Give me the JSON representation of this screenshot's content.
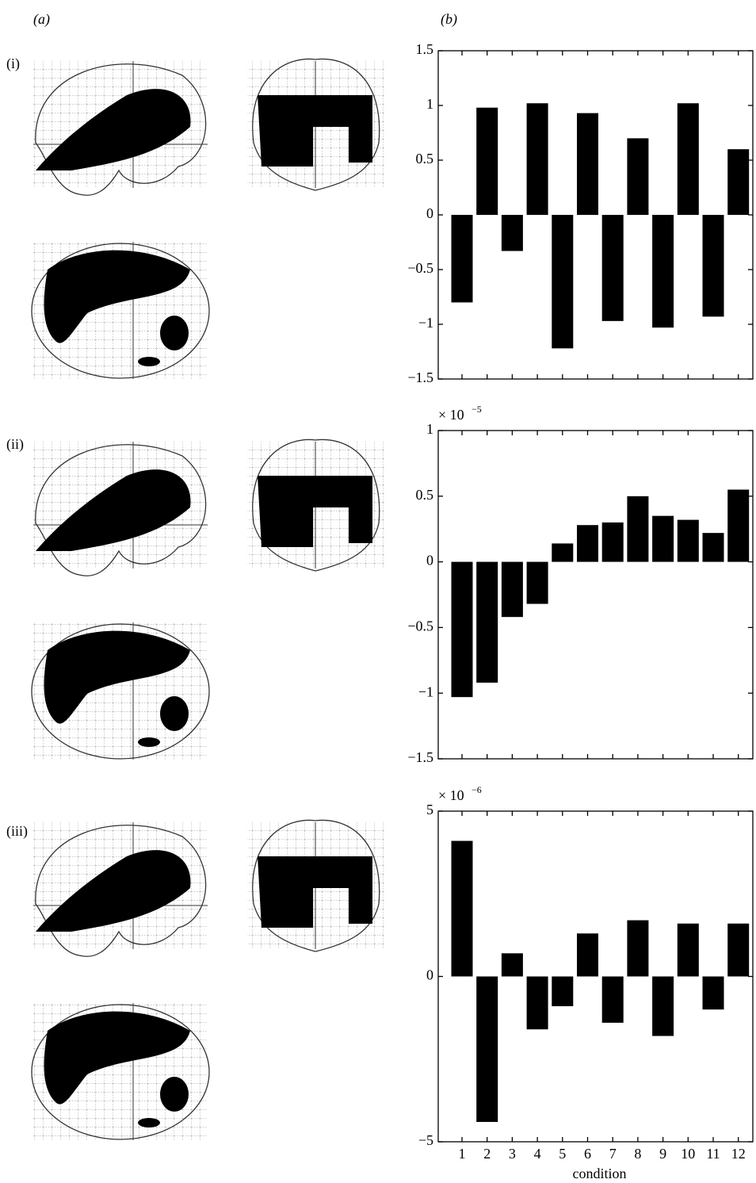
{
  "panel_labels": {
    "a": "(a)",
    "b": "(b)"
  },
  "row_labels": [
    "(i)",
    "(ii)",
    "(iii)"
  ],
  "chart_data": [
    {
      "type": "bar",
      "color": "#000000",
      "categories": [
        null,
        null,
        null,
        null,
        null,
        null,
        null,
        null,
        null,
        null,
        null,
        null
      ],
      "values": [
        -0.8,
        0.98,
        -0.33,
        1.02,
        -1.22,
        0.93,
        -0.97,
        0.7,
        -1.03,
        1.02,
        -0.93,
        0.6
      ],
      "ylim": [
        -1.5,
        1.5
      ],
      "yticks": [
        {
          "value": -1.5,
          "label": "−1.5"
        },
        {
          "value": -1,
          "label": "−1"
        },
        {
          "value": -0.5,
          "label": "−0.5"
        },
        0,
        0.5,
        1,
        1.5
      ]
    },
    {
      "type": "bar",
      "color": "#000000",
      "scale_label": "× 10",
      "scale_exponent": "−5",
      "categories": [
        null,
        null,
        null,
        null,
        null,
        null,
        null,
        null,
        null,
        null,
        null,
        null
      ],
      "values": [
        -1.03,
        -0.92,
        -0.42,
        -0.32,
        0.14,
        0.28,
        0.3,
        0.5,
        0.35,
        0.32,
        0.22,
        0.55
      ],
      "ylim": [
        -1.5,
        1
      ],
      "yticks": [
        {
          "value": -1.5,
          "label": "−1.5"
        },
        {
          "value": -1,
          "label": "−1"
        },
        {
          "value": -0.5,
          "label": "−0.5"
        },
        0,
        0.5,
        1
      ]
    },
    {
      "type": "bar",
      "color": "#000000",
      "scale_label": "× 10",
      "scale_exponent": "−6",
      "x_label": "condition",
      "categories": [
        "1",
        "2",
        "3",
        "4",
        "5",
        "6",
        "7",
        "8",
        "9",
        "10",
        "11",
        "12"
      ],
      "values": [
        4.1,
        -4.4,
        0.7,
        -1.6,
        -0.9,
        1.3,
        -1.4,
        1.7,
        -1.8,
        1.6,
        -1.0,
        1.6
      ],
      "ylim": [
        -5,
        5
      ],
      "yticks": [
        {
          "value": -5,
          "label": "−5"
        },
        0,
        5
      ]
    }
  ]
}
